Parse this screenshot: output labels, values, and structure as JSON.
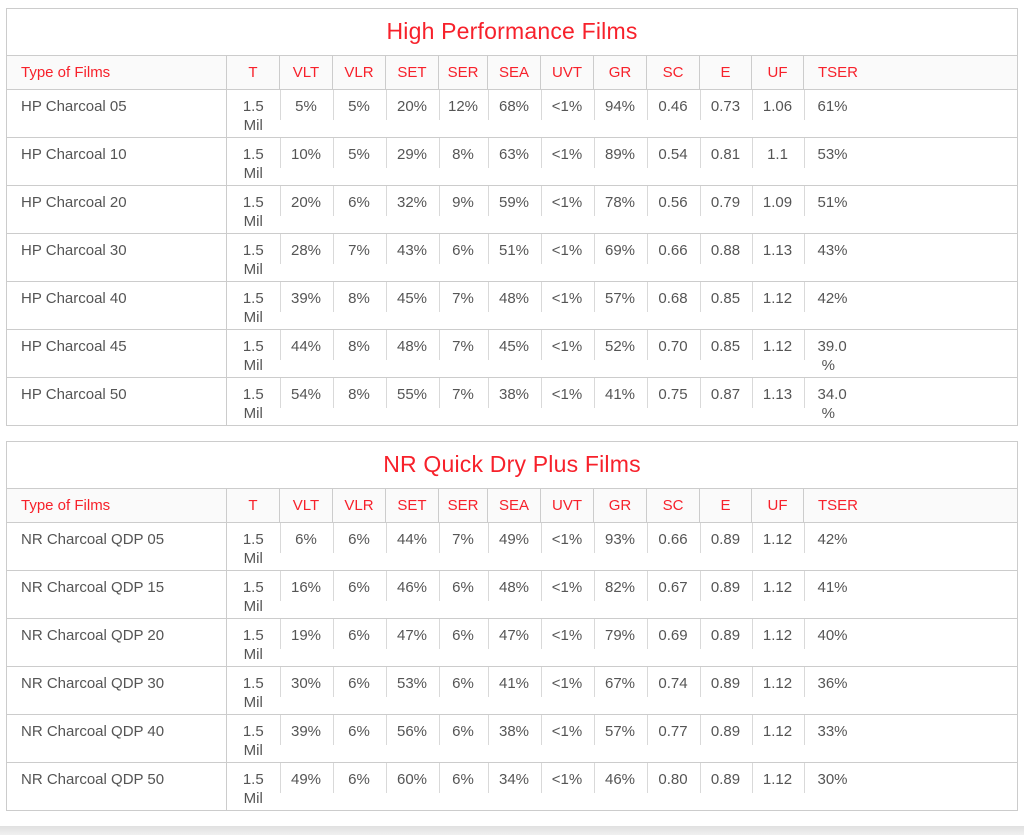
{
  "colors": {
    "accent_red": "#f7212b",
    "body_text": "#555555",
    "border": "#cccccc",
    "divider": "#d9d9d9",
    "header_bg": "#fafafa",
    "page_bg": "#ffffff"
  },
  "tables": [
    {
      "title": "High Performance Films",
      "columns": [
        "Type of Films",
        "T",
        "VLT",
        "VLR",
        "SET",
        "SER",
        "SEA",
        "UVT",
        "GR",
        "SC",
        "E",
        "UF",
        "TSER"
      ],
      "rows": [
        [
          "HP Charcoal 05",
          "1.5\nMil",
          "5%",
          "5%",
          "20%",
          "12%",
          "68%",
          "<1%",
          "94%",
          "0.46",
          "0.73",
          "1.06",
          "61%"
        ],
        [
          "HP Charcoal 10",
          "1.5\nMil",
          "10%",
          "5%",
          "29%",
          "8%",
          "63%",
          "<1%",
          "89%",
          "0.54",
          "0.81",
          "1.1",
          "53%"
        ],
        [
          "HP Charcoal 20",
          "1.5\nMil",
          "20%",
          "6%",
          "32%",
          "9%",
          "59%",
          "<1%",
          "78%",
          "0.56",
          "0.79",
          "1.09",
          "51%"
        ],
        [
          "HP Charcoal 30",
          "1.5\nMil",
          "28%",
          "7%",
          "43%",
          "6%",
          "51%",
          "<1%",
          "69%",
          "0.66",
          "0.88",
          "1.13",
          "43%"
        ],
        [
          "HP Charcoal 40",
          "1.5\nMil",
          "39%",
          "8%",
          "45%",
          "7%",
          "48%",
          "<1%",
          "57%",
          "0.68",
          "0.85",
          "1.12",
          "42%"
        ],
        [
          "HP Charcoal 45",
          "1.5\nMil",
          "44%",
          "8%",
          "48%",
          "7%",
          "45%",
          "<1%",
          "52%",
          "0.70",
          "0.85",
          "1.12",
          "39.0\n %"
        ],
        [
          "HP Charcoal 50",
          "1.5\nMil",
          "54%",
          "8%",
          "55%",
          "7%",
          "38%",
          "<1%",
          "41%",
          "0.75",
          "0.87",
          "1.13",
          "34.0\n %"
        ]
      ]
    },
    {
      "title": "NR Quick Dry Plus Films",
      "columns": [
        "Type of Films",
        "T",
        "VLT",
        "VLR",
        "SET",
        "SER",
        "SEA",
        "UVT",
        "GR",
        "SC",
        "E",
        "UF",
        "TSER"
      ],
      "rows": [
        [
          "NR Charcoal QDP 05",
          "1.5\nMil",
          "6%",
          "6%",
          "44%",
          "7%",
          "49%",
          "<1%",
          "93%",
          "0.66",
          "0.89",
          "1.12",
          "42%"
        ],
        [
          "NR Charcoal QDP 15",
          "1.5\nMil",
          "16%",
          "6%",
          "46%",
          "6%",
          "48%",
          "<1%",
          "82%",
          "0.67",
          "0.89",
          "1.12",
          "41%"
        ],
        [
          "NR Charcoal QDP 20",
          "1.5\nMil",
          "19%",
          "6%",
          "47%",
          "6%",
          "47%",
          "<1%",
          "79%",
          "0.69",
          "0.89",
          "1.12",
          "40%"
        ],
        [
          "NR Charcoal QDP 30",
          "1.5\nMil",
          "30%",
          "6%",
          "53%",
          "6%",
          "41%",
          "<1%",
          "67%",
          "0.74",
          "0.89",
          "1.12",
          "36%"
        ],
        [
          "NR Charcoal QDP 40",
          "1.5\nMil",
          "39%",
          "6%",
          "56%",
          "6%",
          "38%",
          "<1%",
          "57%",
          "0.77",
          "0.89",
          "1.12",
          "33%"
        ],
        [
          "NR Charcoal QDP 50",
          "1.5\nMil",
          "49%",
          "6%",
          "60%",
          "6%",
          "34%",
          "<1%",
          "46%",
          "0.80",
          "0.89",
          "1.12",
          "30%"
        ]
      ]
    }
  ]
}
